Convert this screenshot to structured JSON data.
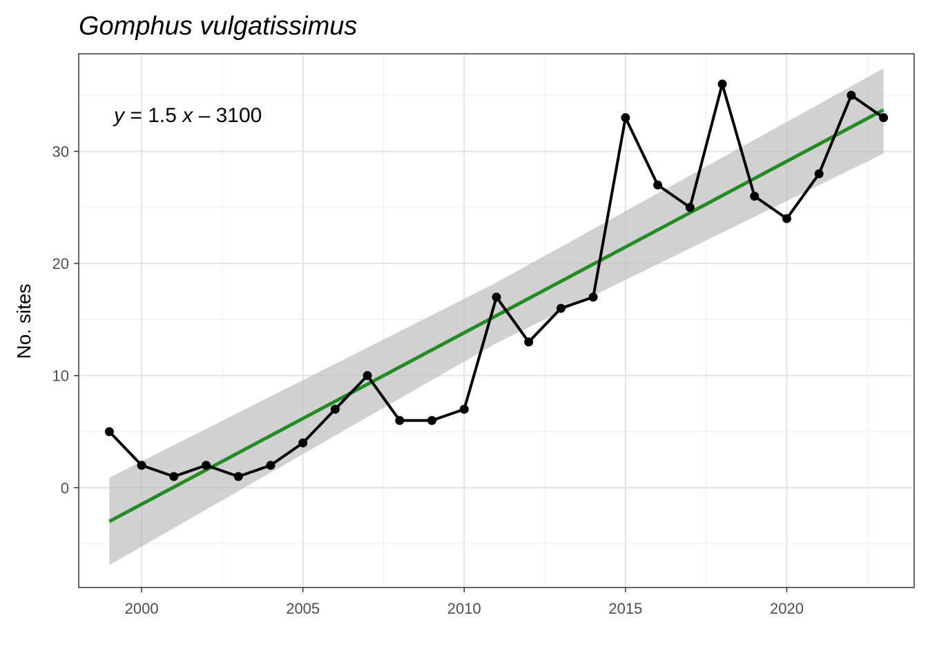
{
  "chart_data": {
    "type": "line",
    "title": "Gomphus vulgatissimus",
    "xlabel": "",
    "ylabel": "No. sites",
    "x": [
      1999,
      2000,
      2001,
      2002,
      2003,
      2004,
      2005,
      2006,
      2007,
      2008,
      2009,
      2010,
      2011,
      2012,
      2013,
      2014,
      2015,
      2016,
      2017,
      2018,
      2019,
      2020,
      2021,
      2022,
      2023
    ],
    "series": [
      {
        "values": [
          5,
          2,
          1,
          2,
          1,
          2,
          4,
          7,
          10,
          6,
          6,
          7,
          17,
          13,
          16,
          17,
          33,
          27,
          25,
          36,
          26,
          24,
          28,
          35,
          33
        ]
      }
    ],
    "trend": {
      "equation_y": "y",
      "equation_mid": " = 1.5 ",
      "equation_x": "x",
      "equation_rest": " – 3100",
      "start": [
        1999,
        -3.0
      ],
      "end": [
        2023,
        33.7
      ],
      "ci_lower": [
        [
          1999,
          -6.9
        ],
        [
          2011,
          12.9
        ],
        [
          2023,
          29.8
        ]
      ],
      "ci_upper": [
        [
          1999,
          0.9
        ],
        [
          2011,
          18.3
        ],
        [
          2023,
          37.4
        ]
      ],
      "color": "#228b22",
      "ribbon_color": "#bebebe"
    },
    "xlim": [
      1998.05,
      2023.95
    ],
    "ylim": [
      -8.9,
      38.7
    ],
    "x_ticks": [
      2000,
      2005,
      2010,
      2015,
      2020
    ],
    "x_minor": [
      2002.5,
      2007.5,
      2012.5,
      2017.5,
      2022.5
    ],
    "y_ticks": [
      0,
      10,
      20,
      30
    ],
    "y_minor": [
      -5,
      5,
      15,
      25,
      35
    ],
    "grid": true,
    "line_color": "#000000"
  }
}
